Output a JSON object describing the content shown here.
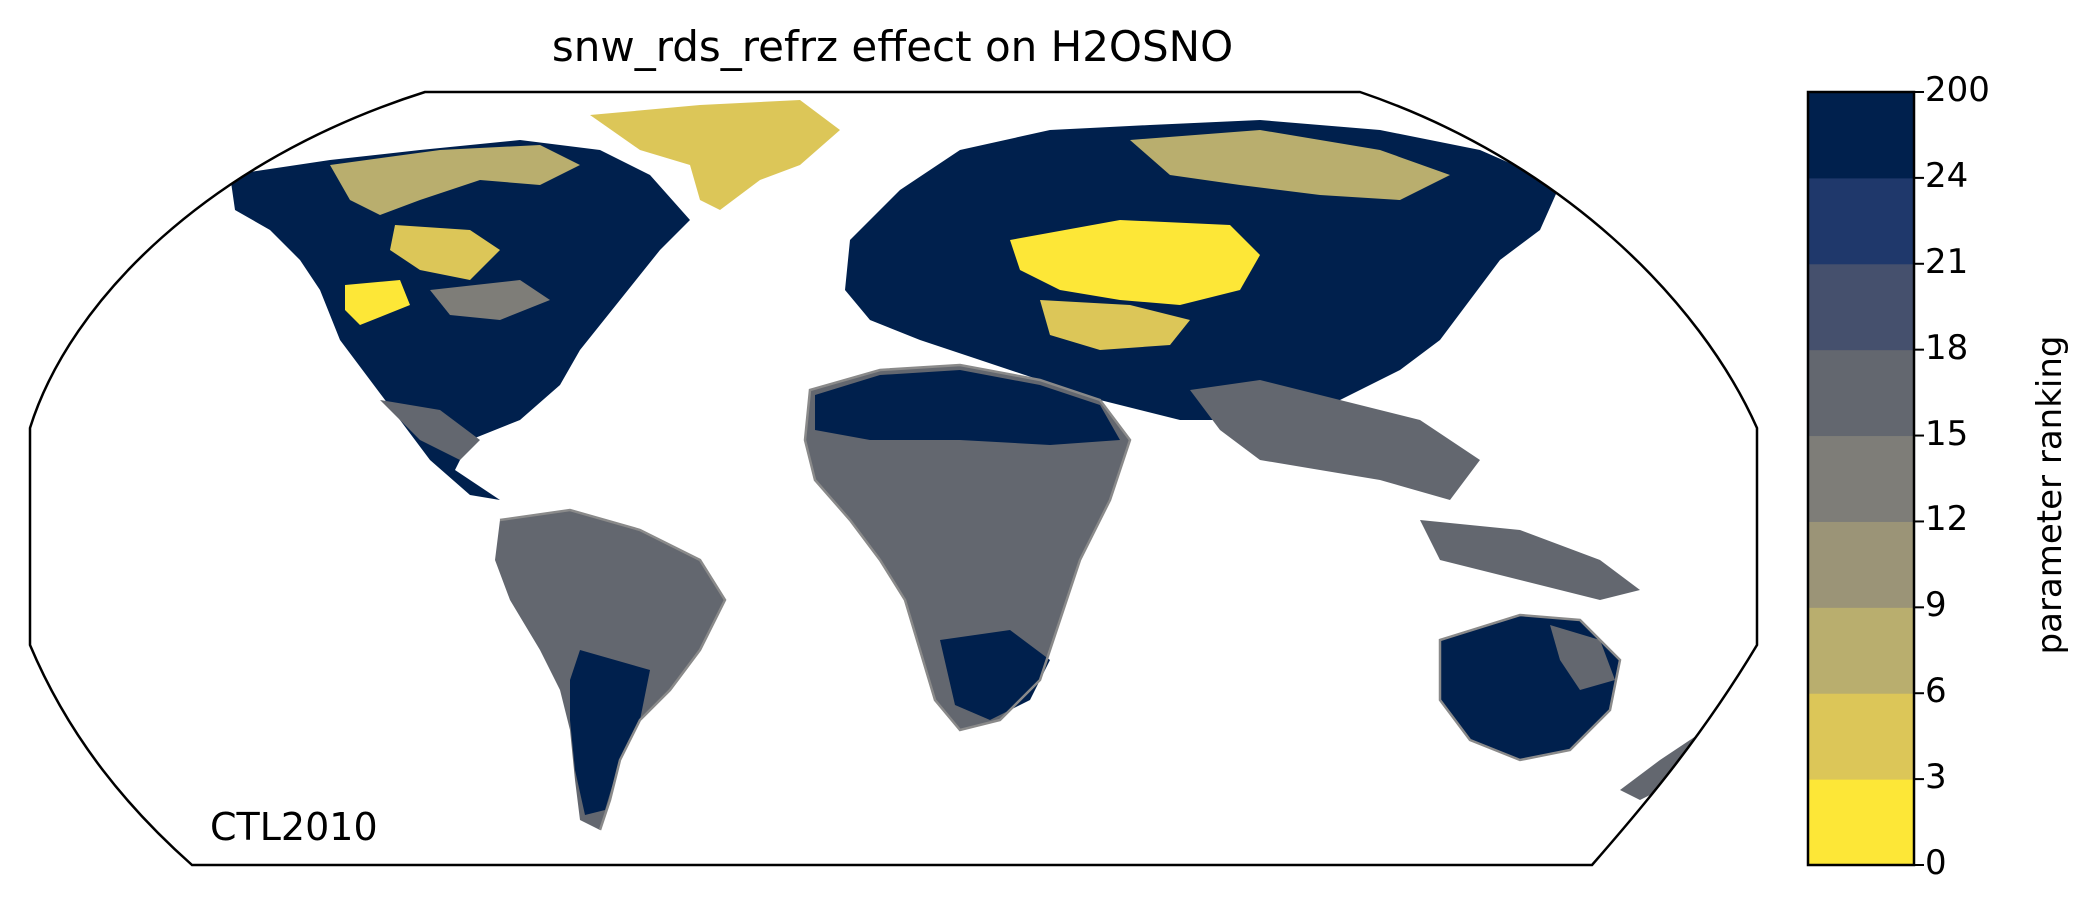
{
  "title": "snw_rds_refrz effect on H2OSNO",
  "panel_label": "CTL2010",
  "colorbar": {
    "label": "parameter ranking",
    "tick_labels": [
      "0",
      "3",
      "6",
      "9",
      "12",
      "15",
      "18",
      "21",
      "24",
      "200"
    ],
    "bins": [
      {
        "range": "0-3",
        "color": "#fde737"
      },
      {
        "range": "3-6",
        "color": "#dcc658"
      },
      {
        "range": "6-9",
        "color": "#b9ae6e"
      },
      {
        "range": "9-12",
        "color": "#9b9477"
      },
      {
        "range": "12-15",
        "color": "#7e7d78"
      },
      {
        "range": "15-18",
        "color": "#63676f"
      },
      {
        "range": "18-21",
        "color": "#45506d"
      },
      {
        "range": "21-24",
        "color": "#1f386b"
      },
      {
        "range": "24-200",
        "color": "#00204d"
      }
    ]
  },
  "map": {
    "projection": "Robinson",
    "coastline_color": "#8a8a8a",
    "ocean_color": "#ffffff"
  }
}
